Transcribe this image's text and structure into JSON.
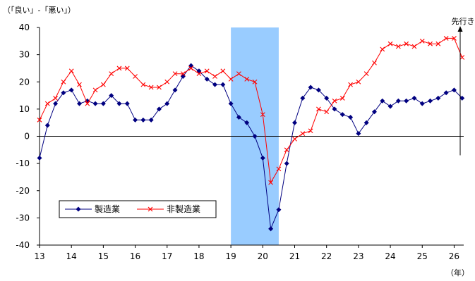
{
  "chart_data": {
    "type": "line",
    "ylabel": "（「良い」-「悪い」）",
    "xlabel": "（年）",
    "annotation": "先行き",
    "ylim": [
      -40,
      40
    ],
    "y_ticks": [
      40,
      30,
      20,
      10,
      0,
      -10,
      -20,
      -30,
      -40
    ],
    "x_ticks": [
      "13",
      "14",
      "15",
      "16",
      "17",
      "18",
      "19",
      "20",
      "21",
      "22",
      "23",
      "24",
      "25",
      "26"
    ],
    "x_range": [
      13.0,
      26.3
    ],
    "shaded_region": {
      "x_start": 19.0,
      "x_end": 20.5,
      "color": "#99ccff"
    },
    "legend_position": "bottom-left",
    "series": [
      {
        "name": "製造業",
        "color": "#000080",
        "marker": "diamond",
        "x": [
          13.0,
          13.25,
          13.5,
          13.75,
          14.0,
          14.25,
          14.5,
          14.75,
          15.0,
          15.25,
          15.5,
          15.75,
          16.0,
          16.25,
          16.5,
          16.75,
          17.0,
          17.25,
          17.5,
          17.75,
          18.0,
          18.25,
          18.5,
          18.75,
          19.0,
          19.25,
          19.5,
          19.75,
          20.0,
          20.25,
          20.5,
          20.75,
          21.0,
          21.25,
          21.5,
          21.75,
          22.0,
          22.25,
          22.5,
          22.75,
          23.0,
          23.25,
          23.5,
          23.75,
          24.0,
          24.25,
          24.5,
          24.75,
          25.0,
          25.25,
          25.5,
          25.75,
          26.0,
          26.25
        ],
        "values": [
          -8,
          4,
          12,
          16,
          17,
          12,
          13,
          12,
          12,
          15,
          12,
          12,
          6,
          6,
          6,
          10,
          12,
          17,
          22,
          26,
          24,
          21,
          19,
          19,
          12,
          7,
          5,
          0,
          -8,
          -34,
          -27,
          -10,
          5,
          14,
          18,
          17,
          14,
          10,
          8,
          7,
          1,
          5,
          9,
          13,
          11,
          13,
          13,
          14,
          12,
          13,
          14,
          16,
          17,
          14
        ]
      },
      {
        "name": "非製造業",
        "color": "#ff0000",
        "marker": "x",
        "x": [
          13.0,
          13.25,
          13.5,
          13.75,
          14.0,
          14.25,
          14.5,
          14.75,
          15.0,
          15.25,
          15.5,
          15.75,
          16.0,
          16.25,
          16.5,
          16.75,
          17.0,
          17.25,
          17.5,
          17.75,
          18.0,
          18.25,
          18.5,
          18.75,
          19.0,
          19.25,
          19.5,
          19.75,
          20.0,
          20.25,
          20.5,
          20.75,
          21.0,
          21.25,
          21.5,
          21.75,
          22.0,
          22.25,
          22.5,
          22.75,
          23.0,
          23.25,
          23.5,
          23.75,
          24.0,
          24.25,
          24.5,
          24.75,
          25.0,
          25.25,
          25.5,
          25.75,
          26.0,
          26.25
        ],
        "values": [
          6,
          12,
          14,
          20,
          24,
          19,
          12,
          17,
          19,
          23,
          25,
          25,
          22,
          19,
          18,
          18,
          20,
          23,
          23,
          25,
          23,
          24,
          22,
          24,
          21,
          23,
          21,
          20,
          8,
          -17,
          -12,
          -5,
          -1,
          1,
          2,
          10,
          9,
          13,
          14,
          19,
          20,
          23,
          27,
          32,
          34,
          33,
          34,
          33,
          35,
          34,
          34,
          36,
          36,
          29
        ]
      }
    ]
  }
}
